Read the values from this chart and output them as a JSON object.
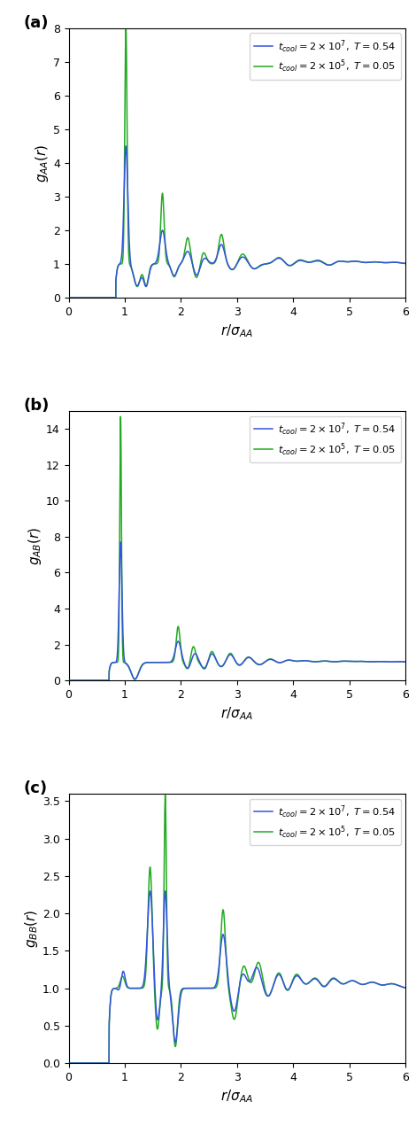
{
  "panel_labels": [
    "(a)",
    "(b)",
    "(c)"
  ],
  "ylabel_a": "$g_{AA}(r)$",
  "ylabel_b": "$g_{AB}(r)$",
  "ylabel_c": "$g_{BB}(r)$",
  "xlabel": "$r/\\sigma_{AA}$",
  "color_blue": "#3355dd",
  "color_green": "#22aa22",
  "xlim": [
    0,
    6
  ],
  "ylim_a": [
    0,
    8
  ],
  "ylim_b": [
    0,
    15
  ],
  "ylim_c": [
    0.0,
    3.6
  ],
  "yticks_a": [
    0,
    1,
    2,
    3,
    4,
    5,
    6,
    7,
    8
  ],
  "yticks_b": [
    0,
    2,
    4,
    6,
    8,
    10,
    12,
    14
  ],
  "yticks_c": [
    0.0,
    0.5,
    1.0,
    1.5,
    2.0,
    2.5,
    3.0,
    3.5
  ]
}
